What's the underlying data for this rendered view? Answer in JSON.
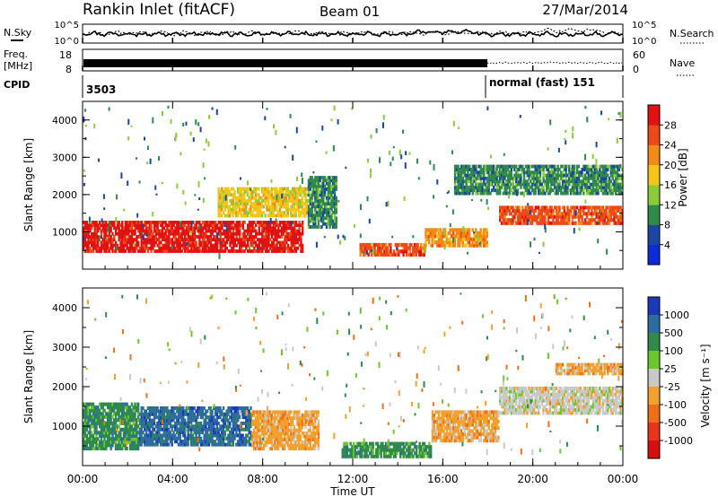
{
  "header": {
    "station": "Rankin Inlet (fitACF)",
    "beam": "Beam 01",
    "date": "27/Mar/2014"
  },
  "noise_panel": {
    "left_label": "N.Sky",
    "right_label": "N.Search",
    "left_tick_top": "10^5",
    "left_tick_bottom": "10^0",
    "right_tick_top": "10^5",
    "right_tick_bottom": "10^0"
  },
  "freq_panel": {
    "left_label_1": "Freq.",
    "left_label_2": "[MHz]",
    "right_label": "Nave",
    "left_tick_top": "18",
    "left_tick_bottom": "8",
    "right_tick_top": "60",
    "right_tick_bottom": "0"
  },
  "cpid_panel": {
    "label": "CPID",
    "value_1": "3503",
    "value_2": "normal (fast) 151"
  },
  "power_panel": {
    "ylabel": "Slant Range [km]",
    "yticks": [
      "1000",
      "2000",
      "3000",
      "4000"
    ],
    "colorbar_label": "Power [dB]",
    "colorbar_ticks": [
      "4",
      "8",
      "12",
      "16",
      "20",
      "24",
      "28"
    ],
    "colorbar_colors": [
      "#0d2bd6",
      "#1b46a6",
      "#2f8a4c",
      "#8ccc3a",
      "#f6c51a",
      "#f28a1a",
      "#ec4a18",
      "#e01212"
    ]
  },
  "velocity_panel": {
    "ylabel": "Slant Range [km]",
    "yticks": [
      "1000",
      "2000",
      "3000",
      "4000"
    ],
    "colorbar_label": "Velocity [m s⁻¹]",
    "colorbar_ticks": [
      "1000",
      "500",
      "100",
      "25",
      "-25",
      "-100",
      "-500",
      "-1000"
    ],
    "colorbar_colors": [
      "#1b39b8",
      "#2d6ca0",
      "#2f8a4c",
      "#6cc72e",
      "#c9c9c9",
      "#f2a12c",
      "#ee6f1a",
      "#e6351a",
      "#d80f0f"
    ]
  },
  "xaxis": {
    "label": "Time UT",
    "ticks": [
      "00:00",
      "04:00",
      "08:00",
      "12:00",
      "16:00",
      "20:00",
      "00:00"
    ]
  },
  "chart_data": {
    "type": "heatmap",
    "xlim": [
      "00:00",
      "24:00"
    ],
    "ylim": [
      0,
      4500
    ],
    "power_series_description": null,
    "power_blobs": [
      {
        "t0": 0.0,
        "t1": 9.8,
        "r0": 450,
        "r1": 1300,
        "level": 28
      },
      {
        "t0": 6.0,
        "t1": 10.0,
        "r0": 1400,
        "r1": 2200,
        "level": 16
      },
      {
        "t0": 10.0,
        "t1": 11.3,
        "r0": 1100,
        "r1": 2500,
        "level": 8
      },
      {
        "t0": 12.3,
        "t1": 15.2,
        "r0": 350,
        "r1": 700,
        "level": 24
      },
      {
        "t0": 15.2,
        "t1": 18.0,
        "r0": 600,
        "r1": 1100,
        "level": 20
      },
      {
        "t0": 18.5,
        "t1": 24.0,
        "r0": 1200,
        "r1": 1700,
        "level": 24
      },
      {
        "t0": 16.5,
        "t1": 24.0,
        "r0": 2000,
        "r1": 2800,
        "level": 8
      }
    ],
    "velocity_blobs": [
      {
        "t0": 0.0,
        "t1": 2.5,
        "r0": 400,
        "r1": 1600,
        "level": 100
      },
      {
        "t0": 2.5,
        "t1": 7.5,
        "r0": 500,
        "r1": 1500,
        "level": 500
      },
      {
        "t0": 7.5,
        "t1": 10.5,
        "r0": 400,
        "r1": 1400,
        "level": -100
      },
      {
        "t0": 11.5,
        "t1": 15.5,
        "r0": 200,
        "r1": 600,
        "level": 100
      },
      {
        "t0": 15.5,
        "t1": 18.5,
        "r0": 600,
        "r1": 1400,
        "level": -100
      },
      {
        "t0": 18.5,
        "t1": 24.0,
        "r0": 1300,
        "r1": 2000,
        "level": -25
      },
      {
        "t0": 21.0,
        "t1": 24.0,
        "r0": 2300,
        "r1": 2600,
        "level": -100
      }
    ]
  }
}
